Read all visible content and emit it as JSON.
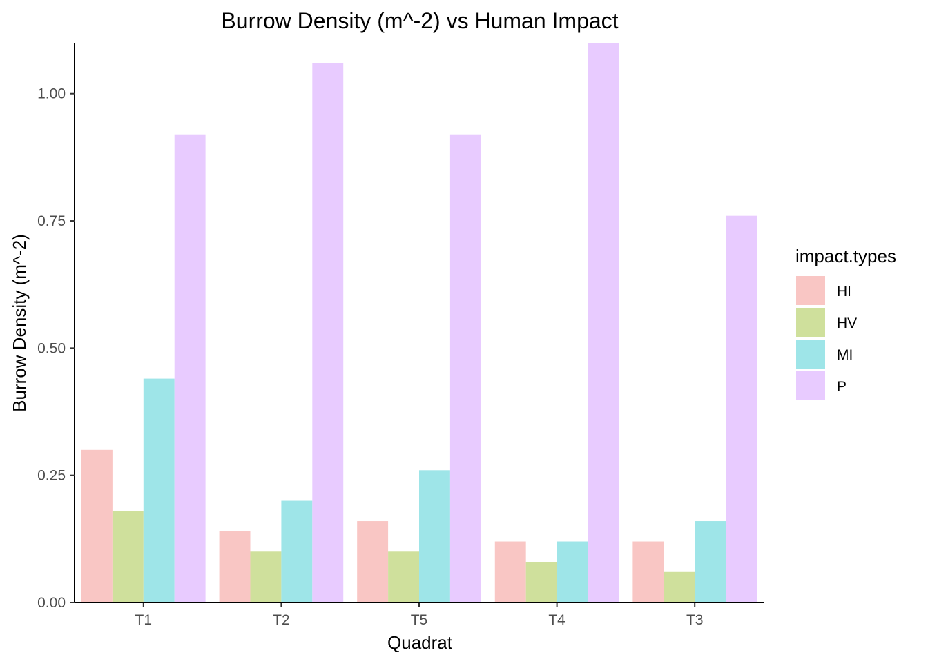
{
  "chart_data": {
    "type": "bar",
    "title": "Burrow Density (m^-2) vs Human Impact",
    "xlabel": "Quadrat",
    "ylabel": "Burrow Density (m^-2)",
    "categories": [
      "T1",
      "T2",
      "T5",
      "T4",
      "T3"
    ],
    "ylim": [
      0,
      1.1
    ],
    "yticks": [
      0.0,
      0.25,
      0.5,
      0.75,
      1.0
    ],
    "ytick_labels": [
      "0.00",
      "0.25",
      "0.50",
      "0.75",
      "1.00"
    ],
    "grid": false,
    "legend": {
      "title": "impact.types",
      "position": "right"
    },
    "series": [
      {
        "name": "HI",
        "color": "#F9C6C4",
        "values": [
          0.3,
          0.14,
          0.16,
          0.12,
          0.12
        ]
      },
      {
        "name": "HV",
        "color": "#CFE09C",
        "values": [
          0.18,
          0.1,
          0.1,
          0.08,
          0.06
        ]
      },
      {
        "name": "MI",
        "color": "#9EE5E8",
        "values": [
          0.44,
          0.2,
          0.26,
          0.12,
          0.16
        ]
      },
      {
        "name": "P",
        "color": "#E8CBFF",
        "values": [
          0.92,
          1.06,
          0.92,
          1.1,
          0.76
        ]
      }
    ]
  }
}
